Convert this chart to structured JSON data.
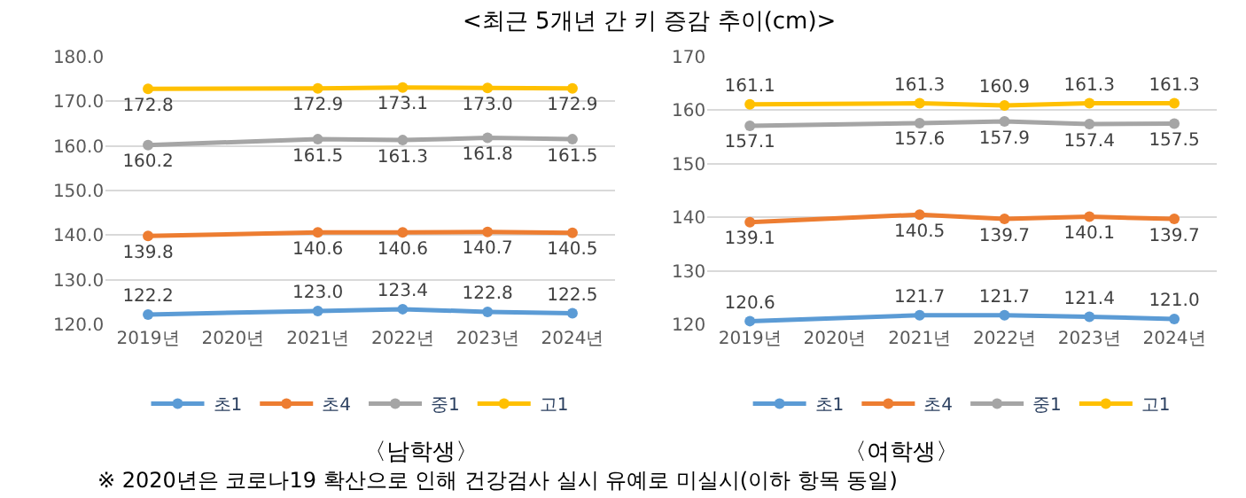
{
  "chart_data": [
    {
      "type": "line",
      "title": "<최근 5개년 간 키 증감 추이(cm)>",
      "xlabel": "〈남학생〉",
      "categories": [
        "2019년",
        "2020년",
        "2021년",
        "2022년",
        "2023년",
        "2024년"
      ],
      "series": [
        {
          "name": "초1",
          "color": "#5b9bd5",
          "values": [
            122.2,
            null,
            123.0,
            123.4,
            122.8,
            122.5
          ],
          "value_labels": [
            "122.2",
            null,
            "123.0",
            "123.4",
            "122.8",
            "122.5"
          ]
        },
        {
          "name": "초4",
          "color": "#ed7d31",
          "values": [
            139.8,
            null,
            140.6,
            140.6,
            140.7,
            140.5
          ],
          "value_labels": [
            "139.8",
            null,
            "140.6",
            "140.6",
            "140.7",
            "140.5"
          ]
        },
        {
          "name": "중1",
          "color": "#a5a5a5",
          "values": [
            160.2,
            null,
            161.5,
            161.3,
            161.8,
            161.5
          ],
          "value_labels": [
            "160.2",
            null,
            "161.5",
            "161.3",
            "161.8",
            "161.5"
          ]
        },
        {
          "name": "고1",
          "color": "#ffc000",
          "values": [
            172.8,
            null,
            172.9,
            173.1,
            173.0,
            172.9
          ],
          "value_labels": [
            "172.8",
            null,
            "172.9",
            "173.1",
            "173.0",
            "172.9"
          ]
        }
      ],
      "ylim": [
        120,
        180
      ],
      "yticks": [
        {
          "value": 120,
          "label": "120.0"
        },
        {
          "value": 130,
          "label": "130.0"
        },
        {
          "value": 140,
          "label": "140.0"
        },
        {
          "value": 150,
          "label": "150.0"
        },
        {
          "value": 160,
          "label": "160.0"
        },
        {
          "value": 170,
          "label": "170.0"
        },
        {
          "value": 180,
          "label": "180.0"
        }
      ],
      "grid": "y",
      "legend": "bottom",
      "marker": "circle"
    },
    {
      "type": "line",
      "xlabel": "〈여학생〉",
      "categories": [
        "2019년",
        "2020년",
        "2021년",
        "2022년",
        "2023년",
        "2024년"
      ],
      "series": [
        {
          "name": "초1",
          "color": "#5b9bd5",
          "values": [
            120.6,
            null,
            121.7,
            121.7,
            121.4,
            121.0
          ],
          "value_labels": [
            "120.6",
            null,
            "121.7",
            "121.7",
            "121.4",
            "121.0"
          ]
        },
        {
          "name": "초4",
          "color": "#ed7d31",
          "values": [
            139.1,
            null,
            140.5,
            139.7,
            140.1,
            139.7
          ],
          "value_labels": [
            "139.1",
            null,
            "140.5",
            "139.7",
            "140.1",
            "139.7"
          ]
        },
        {
          "name": "중1",
          "color": "#a5a5a5",
          "values": [
            157.1,
            null,
            157.6,
            157.9,
            157.4,
            157.5
          ],
          "value_labels": [
            "157.1",
            null,
            "157.6",
            "157.9",
            "157.4",
            "157.5"
          ]
        },
        {
          "name": "고1",
          "color": "#ffc000",
          "values": [
            161.1,
            null,
            161.3,
            160.9,
            161.3,
            161.3
          ],
          "value_labels": [
            "161.1",
            null,
            "161.3",
            "160.9",
            "161.3",
            "161.3"
          ]
        }
      ],
      "ylim": [
        120,
        170
      ],
      "yticks": [
        120,
        130,
        140,
        150,
        160,
        170
      ],
      "grid": "y",
      "legend": "bottom",
      "marker": "circle",
      "annotations": [
        "※ 2020년은 코로나19 확산으로 인해 건강검사 실시 유예로 미실시(이하 항목 동일)"
      ]
    }
  ]
}
